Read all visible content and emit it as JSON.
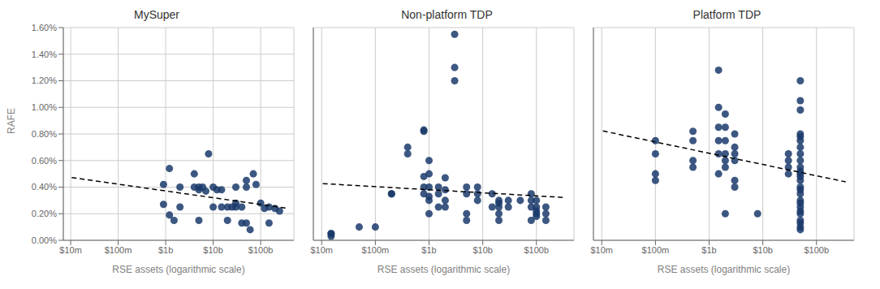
{
  "chart_data": [
    {
      "type": "scatter",
      "title": "MySuper",
      "x_label": "RSE assets (logarithmic scale)",
      "y_label": "RAFE",
      "log": "x",
      "grid": true,
      "xlim": [
        7000000,
        500000000000
      ],
      "xticks": [
        {
          "value": 10000000,
          "label": "$10m"
        },
        {
          "value": 100000000,
          "label": "$100m"
        },
        {
          "value": 1000000000,
          "label": "$1b"
        },
        {
          "value": 10000000000,
          "label": "$10b"
        },
        {
          "value": 100000000000,
          "label": "$100b"
        }
      ],
      "ylim": [
        0.0,
        0.016
      ],
      "yticks": [
        {
          "value": 0.0,
          "label": "0.00%"
        },
        {
          "value": 0.002,
          "label": "0.20%"
        },
        {
          "value": 0.004,
          "label": "0.40%"
        },
        {
          "value": 0.006,
          "label": "0.60%"
        },
        {
          "value": 0.008,
          "label": "0.80%"
        },
        {
          "value": 0.01,
          "label": "1.00%"
        },
        {
          "value": 0.012,
          "label": "1.20%"
        },
        {
          "value": 0.014,
          "label": "1.40%"
        },
        {
          "value": 0.016,
          "label": "1.60%"
        }
      ],
      "series": [
        {
          "type": "scatter",
          "marker": "circle",
          "color": "#1a3a6b",
          "x": [
            900000000,
            900000000,
            1200000000,
            1200000000,
            1500000000,
            2000000000,
            2000000000,
            4000000000,
            4000000000,
            5000000000,
            5000000000,
            5000000000,
            6000000000,
            7000000000,
            8000000000,
            10000000000,
            10000000000,
            12000000000,
            15000000000,
            15000000000,
            20000000000,
            20000000000,
            25000000000,
            30000000000,
            30000000000,
            30000000000,
            40000000000,
            40000000000,
            50000000000,
            50000000000,
            50000000000,
            60000000000,
            70000000000,
            80000000000,
            100000000000,
            120000000000,
            150000000000,
            150000000000,
            200000000000,
            250000000000
          ],
          "values": [
            0.0042,
            0.0027,
            0.0054,
            0.0019,
            0.0015,
            0.004,
            0.0025,
            0.004,
            0.005,
            0.0038,
            0.004,
            0.0015,
            0.004,
            0.0037,
            0.0065,
            0.0025,
            0.004,
            0.0038,
            0.0025,
            0.0038,
            0.0025,
            0.0015,
            0.0025,
            0.0028,
            0.0025,
            0.004,
            0.0025,
            0.0013,
            0.0045,
            0.004,
            0.0013,
            0.0008,
            0.005,
            0.0042,
            0.0028,
            0.0024,
            0.0013,
            0.0025,
            0.0024,
            0.0022
          ]
        },
        {
          "type": "line",
          "line_style": "dashed",
          "color": "black",
          "x": [
            10500000,
            350000000000
          ],
          "values": [
            0.0047224,
            0.0024155
          ]
        }
      ]
    },
    {
      "type": "scatter",
      "title": "Non-platform TDP",
      "x_label": "RSE assets (logarithmic scale)",
      "log": "x",
      "grid": true,
      "tick_labels": "x",
      "xlim": [
        7000000,
        500000000000
      ],
      "xticks": [
        {
          "value": 10000000,
          "label": "$10m"
        },
        {
          "value": 100000000,
          "label": "$100m"
        },
        {
          "value": 1000000000,
          "label": "$1b"
        },
        {
          "value": 10000000000,
          "label": "$10b"
        },
        {
          "value": 100000000000,
          "label": "$100b"
        }
      ],
      "ylim": [
        0.0,
        0.016
      ],
      "yticks": [
        0.0,
        0.002,
        0.004,
        0.006,
        0.008,
        0.01,
        0.012,
        0.014,
        0.016
      ],
      "series": [
        {
          "type": "scatter",
          "marker": "circle",
          "color": "#1a3a6b",
          "x": [
            15000000,
            15000000,
            15000000,
            50000000,
            100000000,
            200000000,
            200000000,
            400000000,
            400000000,
            800000000,
            800000000,
            800000000,
            800000000,
            800000000,
            1000000000,
            1000000000,
            1000000000,
            1000000000,
            1000000000,
            1000000000,
            1500000000,
            1500000000,
            1500000000,
            2000000000,
            2000000000,
            2000000000,
            2000000000,
            3000000000,
            3000000000,
            3000000000,
            5000000000,
            5000000000,
            5000000000,
            5000000000,
            8000000000,
            8000000000,
            8000000000,
            15000000000,
            15000000000,
            20000000000,
            20000000000,
            20000000000,
            20000000000,
            20000000000,
            30000000000,
            30000000000,
            50000000000,
            80000000000,
            80000000000,
            80000000000,
            80000000000,
            100000000000,
            100000000000,
            100000000000,
            100000000000,
            100000000000,
            150000000000,
            150000000000,
            150000000000
          ],
          "values": [
            0.0005,
            0.0005,
            0.0003,
            0.001,
            0.001,
            0.0035,
            0.0035,
            0.007,
            0.0065,
            0.0083,
            0.0082,
            0.0048,
            0.004,
            0.0035,
            0.006,
            0.005,
            0.004,
            0.0033,
            0.003,
            0.002,
            0.004,
            0.0035,
            0.0025,
            0.0047,
            0.0038,
            0.003,
            0.0025,
            0.0155,
            0.013,
            0.012,
            0.004,
            0.0035,
            0.002,
            0.0015,
            0.004,
            0.0035,
            0.003,
            0.0035,
            0.0025,
            0.003,
            0.0028,
            0.0025,
            0.002,
            0.0015,
            0.003,
            0.0025,
            0.003,
            0.0035,
            0.003,
            0.0025,
            0.0015,
            0.003,
            0.0025,
            0.0022,
            0.002,
            0.0018,
            0.0025,
            0.002,
            0.0015
          ]
        },
        {
          "type": "line",
          "line_style": "dashed",
          "color": "black",
          "x": [
            10500000,
            350000000000
          ],
          "values": [
            0.0042632,
            0.0032162
          ]
        }
      ]
    },
    {
      "type": "scatter",
      "title": "Platform TDP",
      "x_label": "RSE assets (logarithmic scale)",
      "log": "x",
      "grid": true,
      "tick_labels": "x",
      "xlim": [
        7000000,
        500000000000
      ],
      "xticks": [
        {
          "value": 10000000,
          "label": "$10m"
        },
        {
          "value": 100000000,
          "label": "$100m"
        },
        {
          "value": 1000000000,
          "label": "$1b"
        },
        {
          "value": 10000000000,
          "label": "$10b"
        },
        {
          "value": 100000000000,
          "label": "$100b"
        }
      ],
      "ylim": [
        0.0,
        0.016
      ],
      "yticks": [
        0.0,
        0.002,
        0.004,
        0.006,
        0.008,
        0.01,
        0.012,
        0.014,
        0.016
      ],
      "series": [
        {
          "type": "scatter",
          "marker": "circle",
          "color": "#1a3a6b",
          "x": [
            100000000,
            100000000,
            100000000,
            100000000,
            500000000,
            500000000,
            500000000,
            500000000,
            1500000000,
            1500000000,
            1500000000,
            1500000000,
            1500000000,
            1500000000,
            2000000000,
            2000000000,
            2000000000,
            2000000000,
            2000000000,
            2000000000,
            2000000000,
            3000000000,
            3000000000,
            3000000000,
            3000000000,
            3000000000,
            3000000000,
            8000000000,
            30000000000,
            30000000000,
            30000000000,
            30000000000,
            50000000000,
            50000000000,
            50000000000,
            50000000000,
            50000000000,
            50000000000,
            50000000000,
            50000000000,
            50000000000,
            50000000000,
            50000000000,
            50000000000,
            50000000000,
            50000000000,
            50000000000,
            50000000000,
            50000000000,
            50000000000,
            50000000000,
            50000000000,
            50000000000,
            50000000000,
            50000000000,
            50000000000,
            50000000000,
            50000000000
          ],
          "values": [
            0.0075,
            0.0065,
            0.005,
            0.0045,
            0.0082,
            0.0075,
            0.006,
            0.0055,
            0.0128,
            0.01,
            0.0085,
            0.0075,
            0.0065,
            0.005,
            0.0095,
            0.0085,
            0.0075,
            0.0065,
            0.006,
            0.0055,
            0.002,
            0.008,
            0.007,
            0.0065,
            0.006,
            0.0045,
            0.004,
            0.002,
            0.0065,
            0.006,
            0.005,
            0.0055,
            0.012,
            0.0105,
            0.0098,
            0.008,
            0.0078,
            0.0075,
            0.007,
            0.0065,
            0.006,
            0.0055,
            0.0052,
            0.005,
            0.0048,
            0.0045,
            0.004,
            0.0038,
            0.0035,
            0.003,
            0.0028,
            0.0025,
            0.0022,
            0.002,
            0.0015,
            0.0013,
            0.001,
            0.0008
          ]
        },
        {
          "type": "line",
          "line_style": "dashed",
          "color": "black",
          "x": [
            10500000,
            350000000000
          ],
          "values": [
            0.0082246,
            0.0043955
          ]
        }
      ]
    }
  ]
}
